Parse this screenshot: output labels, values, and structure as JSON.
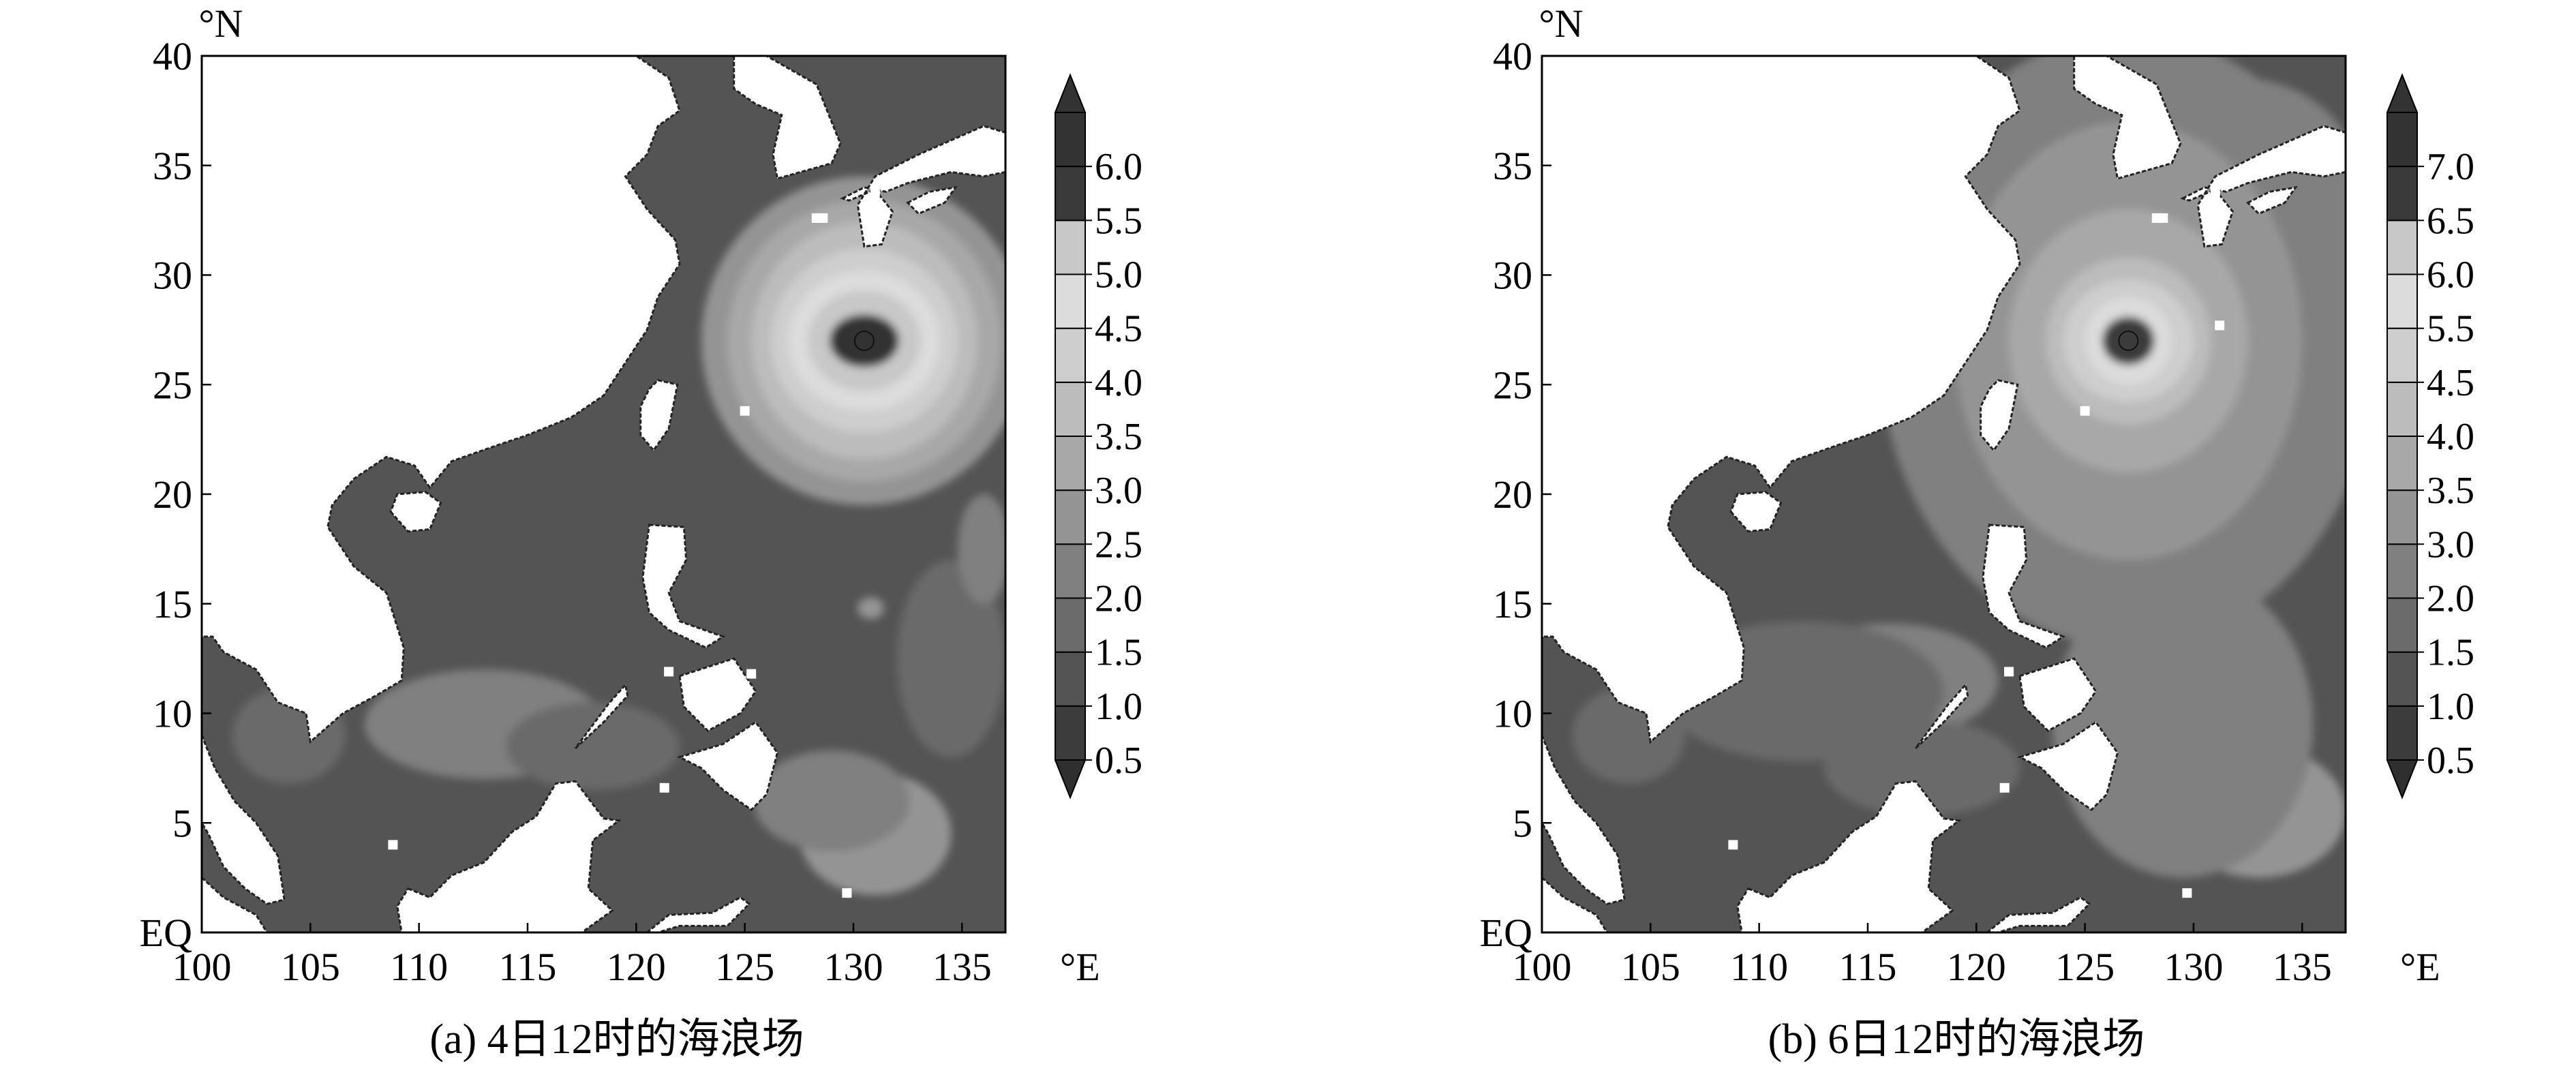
{
  "chart_data": [
    {
      "type": "heatmap",
      "caption": "(a) 4日12时的海浪场",
      "x_unit": "°E",
      "y_unit": "°N",
      "x_ticks": [
        "100",
        "105",
        "110",
        "115",
        "120",
        "125",
        "130",
        "135"
      ],
      "x_tick_values": [
        100,
        105,
        110,
        115,
        120,
        125,
        130,
        135
      ],
      "y_ticks": [
        "EQ",
        "5",
        "10",
        "15",
        "20",
        "25",
        "30",
        "35",
        "40"
      ],
      "y_tick_values": [
        0,
        5,
        10,
        15,
        20,
        25,
        30,
        35,
        40
      ],
      "xlim": [
        100,
        137
      ],
      "ylim": [
        0,
        40
      ],
      "colorbar_levels": [
        "0.5",
        "1.0",
        "1.5",
        "2.0",
        "2.5",
        "3.0",
        "3.5",
        "4.0",
        "4.5",
        "5.0",
        "5.5",
        "6.0"
      ],
      "colorbar_colors": [
        "#2f2f2f",
        "#3c3c3c",
        "#545454",
        "#6b6b6b",
        "#808080",
        "#949494",
        "#a8a8a8",
        "#bcbcbc",
        "#cecece",
        "#dcdcdc",
        "#c8c8c8",
        "#3a3a3a",
        "#333333"
      ],
      "typhoon_center": {
        "lon": 130.5,
        "lat": 27.0
      },
      "rings": [
        {
          "level": 2.5,
          "rx": 7.5,
          "ry": 7.5
        },
        {
          "level": 3.0,
          "rx": 6.3,
          "ry": 6.4
        },
        {
          "level": 3.5,
          "rx": 5.2,
          "ry": 5.4
        },
        {
          "level": 4.0,
          "rx": 4.3,
          "ry": 4.2
        },
        {
          "level": 4.5,
          "rx": 3.5,
          "ry": 3.2
        },
        {
          "level": 5.0,
          "rx": 2.6,
          "ry": 2.3
        },
        {
          "level": 6.0,
          "rx": 1.6,
          "ry": 1.2
        }
      ]
    },
    {
      "type": "heatmap",
      "caption": "(b) 6日12时的海浪场",
      "x_unit": "°E",
      "y_unit": "°N",
      "x_ticks": [
        "100",
        "105",
        "110",
        "115",
        "120",
        "125",
        "130",
        "135"
      ],
      "x_tick_values": [
        100,
        105,
        110,
        115,
        120,
        125,
        130,
        135
      ],
      "y_ticks": [
        "EQ",
        "5",
        "10",
        "15",
        "20",
        "25",
        "30",
        "35",
        "40"
      ],
      "y_tick_values": [
        0,
        5,
        10,
        15,
        20,
        25,
        30,
        35,
        40
      ],
      "xlim": [
        100,
        137
      ],
      "ylim": [
        0,
        40
      ],
      "colorbar_levels": [
        "0.5",
        "1.0",
        "1.5",
        "2.0",
        "3.0",
        "3.5",
        "4.0",
        "4.5",
        "5.5",
        "6.0",
        "6.5",
        "7.0"
      ],
      "colorbar_colors": [
        "#2f2f2f",
        "#3c3c3c",
        "#545454",
        "#6b6b6b",
        "#808080",
        "#949494",
        "#a8a8a8",
        "#bcbcbc",
        "#cecece",
        "#dcdcdc",
        "#c8c8c8",
        "#3a3a3a",
        "#333333"
      ],
      "typhoon_center": {
        "lon": 127.0,
        "lat": 27.0
      },
      "rings": [
        {
          "level": 2.0,
          "rx": 11.5,
          "ry": 14.0
        },
        {
          "level": 3.0,
          "rx": 8.0,
          "ry": 10.0
        },
        {
          "level": 3.5,
          "rx": 5.5,
          "ry": 6.0
        },
        {
          "level": 4.0,
          "rx": 3.8,
          "ry": 3.8
        },
        {
          "level": 4.5,
          "rx": 3.0,
          "ry": 2.8
        },
        {
          "level": 5.5,
          "rx": 2.0,
          "ry": 2.0
        },
        {
          "level": 6.5,
          "rx": 1.2,
          "ry": 1.1
        }
      ]
    }
  ]
}
